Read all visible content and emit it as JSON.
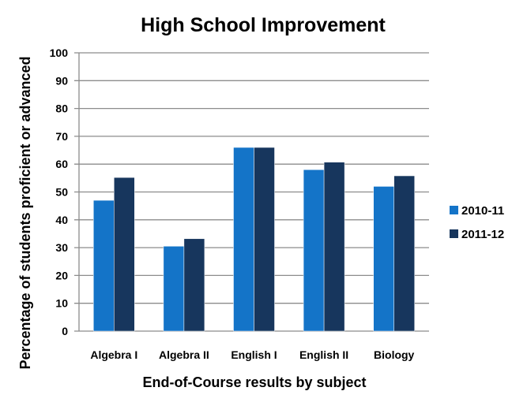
{
  "chart_data": {
    "type": "bar",
    "title": "High School Improvement",
    "xlabel": "End-of-Course results by subject",
    "ylabel": "Percentage of students  proficient or advanced",
    "categories": [
      "Algebra I",
      "Algebra II",
      "English I",
      "English II",
      "Biology"
    ],
    "series": [
      {
        "name": "2010-11",
        "values": [
          47,
          30.5,
          66,
          58,
          52
        ],
        "color": "#1474c8"
      },
      {
        "name": "2011-12",
        "values": [
          55.2,
          33.2,
          66,
          60.7,
          55.8
        ],
        "color": "#17365d"
      }
    ],
    "ylim": [
      0,
      100
    ],
    "yticks": [
      0,
      10,
      20,
      30,
      40,
      50,
      60,
      70,
      80,
      90,
      100
    ],
    "grid": true,
    "legend": "right"
  }
}
